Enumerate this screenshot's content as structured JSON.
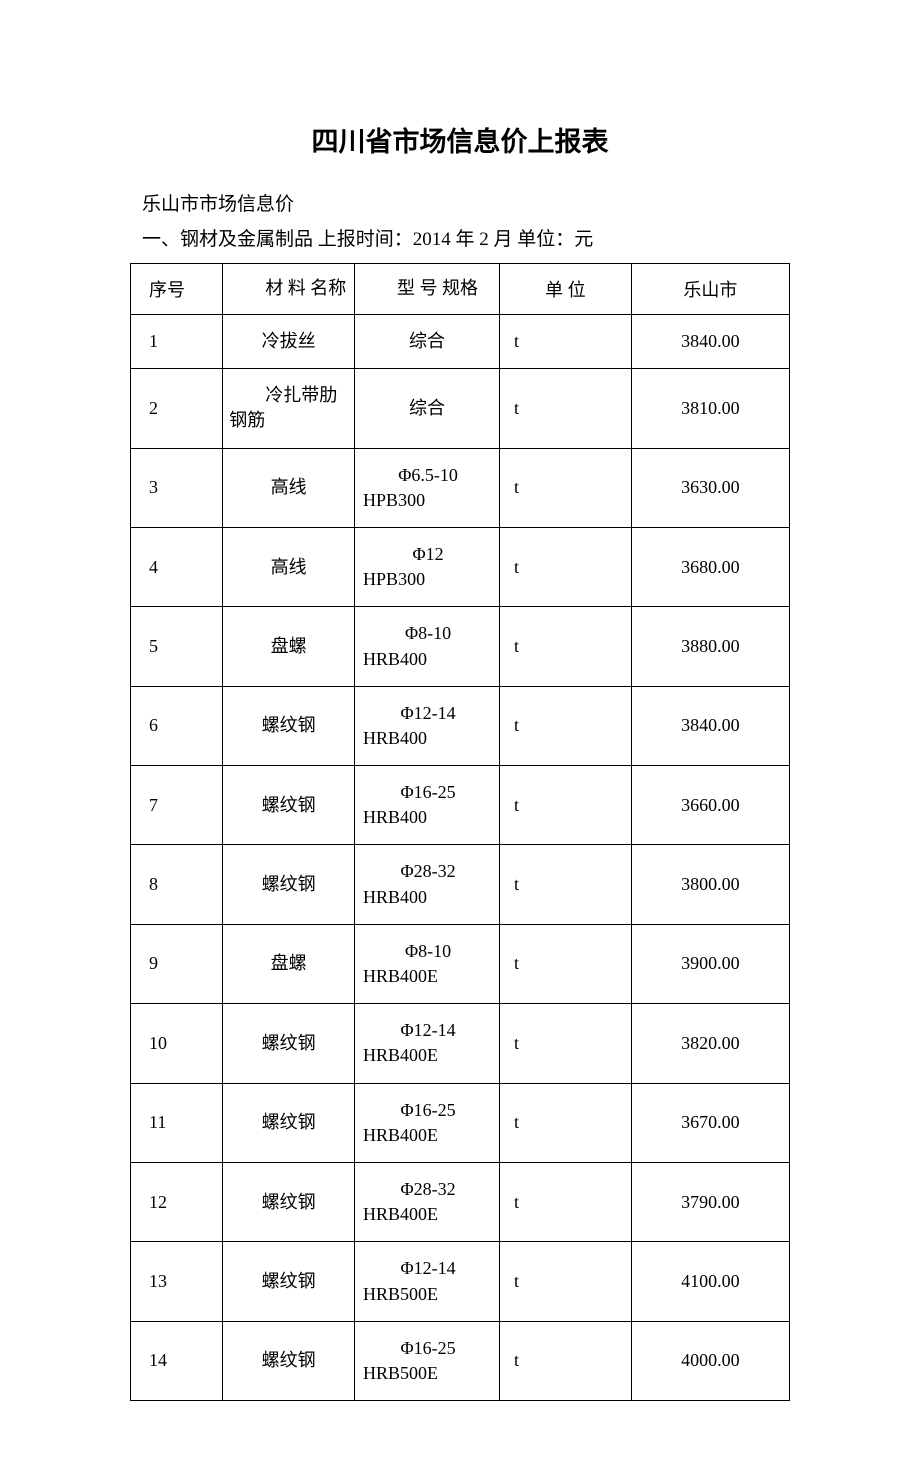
{
  "document": {
    "title": "四川省市场信息价上报表",
    "subtitle": "乐山市市场信息价",
    "info_line": "一、钢材及金属制品 上报时间：2014 年 2 月 单位：元"
  },
  "table": {
    "columns": {
      "seq": "序号",
      "name": "材 料 名称",
      "spec": "型 号 规格",
      "unit": "单 位",
      "price": "乐山市"
    },
    "rows": [
      {
        "seq": "1",
        "name": "冷拔丝",
        "spec": "综合",
        "unit": "t",
        "price": "3840.00"
      },
      {
        "seq": "2",
        "name": "冷扎带肋钢筋",
        "spec": "综合",
        "unit": "t",
        "price": "3810.00"
      },
      {
        "seq": "3",
        "name": "高线",
        "spec": "Φ6.5-10 HPB300",
        "unit": "t",
        "price": "3630.00"
      },
      {
        "seq": "4",
        "name": "高线",
        "spec": "Φ12 HPB300",
        "unit": "t",
        "price": "3680.00"
      },
      {
        "seq": "5",
        "name": "盘螺",
        "spec": "Φ8-10 HRB400",
        "unit": "t",
        "price": "3880.00"
      },
      {
        "seq": "6",
        "name": "螺纹钢",
        "spec": "Φ12-14 HRB400",
        "unit": "t",
        "price": "3840.00"
      },
      {
        "seq": "7",
        "name": "螺纹钢",
        "spec": "Φ16-25 HRB400",
        "unit": "t",
        "price": "3660.00"
      },
      {
        "seq": "8",
        "name": "螺纹钢",
        "spec": "Φ28-32 HRB400",
        "unit": "t",
        "price": "3800.00"
      },
      {
        "seq": "9",
        "name": "盘螺",
        "spec": "Φ8-10 HRB400E",
        "unit": "t",
        "price": "3900.00"
      },
      {
        "seq": "10",
        "name": "螺纹钢",
        "spec": "Φ12-14 HRB400E",
        "unit": "t",
        "price": "3820.00"
      },
      {
        "seq": "11",
        "name": "螺纹钢",
        "spec": "Φ16-25 HRB400E",
        "unit": "t",
        "price": "3670.00"
      },
      {
        "seq": "12",
        "name": "螺纹钢",
        "spec": "Φ28-32 HRB400E",
        "unit": "t",
        "price": "3790.00"
      },
      {
        "seq": "13",
        "name": "螺纹钢",
        "spec": "Φ12-14 HRB500E",
        "unit": "t",
        "price": "4100.00"
      },
      {
        "seq": "14",
        "name": "螺纹钢",
        "spec": "Φ16-25 HRB500E",
        "unit": "t",
        "price": "4000.00"
      }
    ]
  },
  "styling": {
    "title_fontsize": 27,
    "body_fontsize": 19,
    "table_fontsize": 18,
    "border_color": "#000000",
    "background_color": "#ffffff",
    "text_color": "#000000",
    "column_widths": {
      "seq": "14%",
      "name": "20%",
      "spec": "22%",
      "unit": "20%",
      "price": "24%"
    }
  }
}
